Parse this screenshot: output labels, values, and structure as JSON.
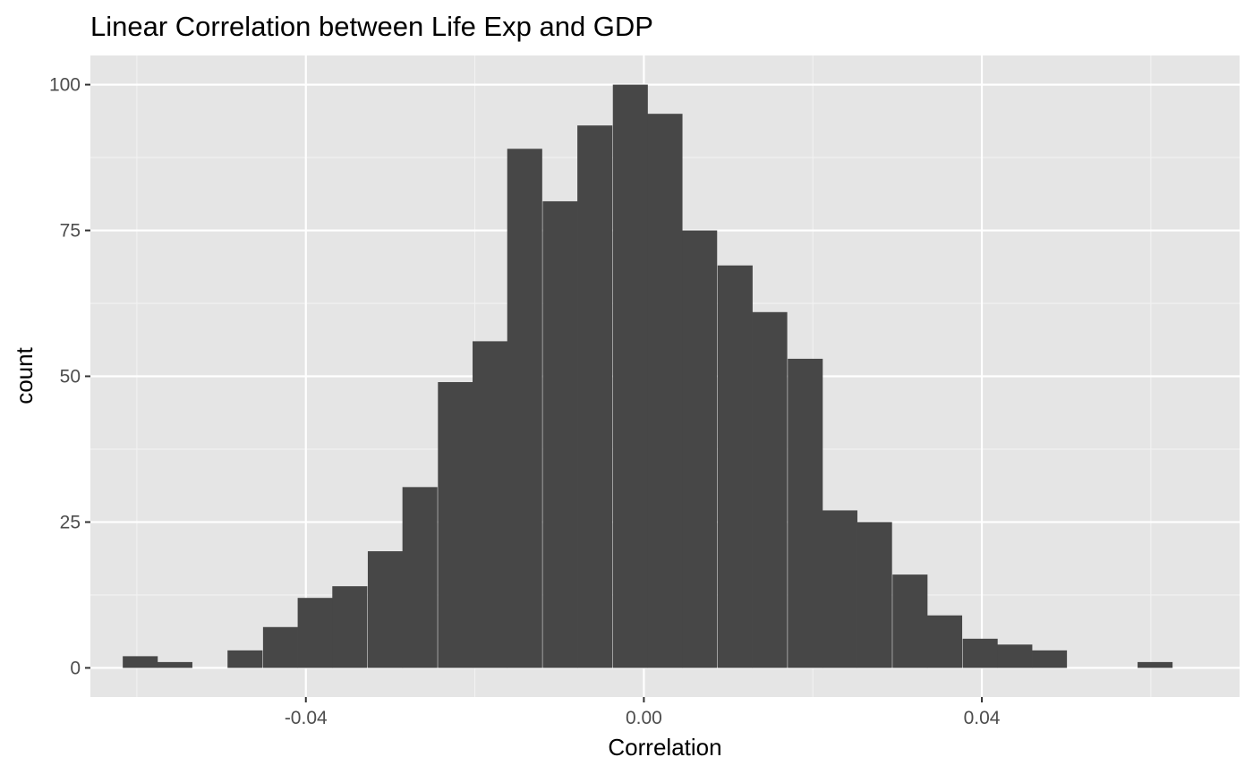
{
  "chart_data": {
    "type": "bar",
    "title": "Linear Correlation between Life Exp and GDP",
    "xlabel": "Correlation",
    "ylabel": "count",
    "xlim": [
      -0.0655,
      0.0705
    ],
    "ylim": [
      -5,
      105
    ],
    "x_ticks": [
      {
        "value": -0.04,
        "label": "-0.04"
      },
      {
        "value": 0.0,
        "label": "0.00"
      },
      {
        "value": 0.04,
        "label": "0.04"
      }
    ],
    "x_minor_ticks": [
      -0.06,
      -0.02,
      0.02,
      0.06
    ],
    "y_ticks": [
      {
        "value": 0,
        "label": "0"
      },
      {
        "value": 25,
        "label": "25"
      },
      {
        "value": 50,
        "label": "50"
      },
      {
        "value": 75,
        "label": "75"
      },
      {
        "value": 100,
        "label": "100"
      }
    ],
    "y_minor_ticks": [
      12.5,
      37.5,
      62.5,
      87.5
    ],
    "bin_width": 0.00414,
    "bins": [
      {
        "x": -0.0596,
        "count": 2
      },
      {
        "x": -0.0555,
        "count": 1
      },
      {
        "x": -0.0513,
        "count": 0
      },
      {
        "x": -0.0472,
        "count": 3
      },
      {
        "x": -0.043,
        "count": 7
      },
      {
        "x": -0.0389,
        "count": 12
      },
      {
        "x": -0.0348,
        "count": 14
      },
      {
        "x": -0.0306,
        "count": 20
      },
      {
        "x": -0.0265,
        "count": 31
      },
      {
        "x": -0.0223,
        "count": 49
      },
      {
        "x": -0.0182,
        "count": 56
      },
      {
        "x": -0.0141,
        "count": 89
      },
      {
        "x": -0.0099,
        "count": 80
      },
      {
        "x": -0.0058,
        "count": 93
      },
      {
        "x": -0.0016,
        "count": 100
      },
      {
        "x": 0.0025,
        "count": 95
      },
      {
        "x": 0.0066,
        "count": 75
      },
      {
        "x": 0.0108,
        "count": 69
      },
      {
        "x": 0.0149,
        "count": 61
      },
      {
        "x": 0.0191,
        "count": 53
      },
      {
        "x": 0.0232,
        "count": 27
      },
      {
        "x": 0.0273,
        "count": 25
      },
      {
        "x": 0.0315,
        "count": 16
      },
      {
        "x": 0.0356,
        "count": 9
      },
      {
        "x": 0.0398,
        "count": 5
      },
      {
        "x": 0.0439,
        "count": 4
      },
      {
        "x": 0.048,
        "count": 3
      },
      {
        "x": 0.0522,
        "count": 0
      },
      {
        "x": 0.0563,
        "count": 0
      },
      {
        "x": 0.0605,
        "count": 1
      }
    ],
    "grid": true,
    "colors": {
      "panel_background": "#e5e5e5",
      "grid_major": "#ffffff",
      "grid_minor": "#f2f2f2",
      "bar_fill": "#474747",
      "tick_mark": "#333333"
    }
  }
}
